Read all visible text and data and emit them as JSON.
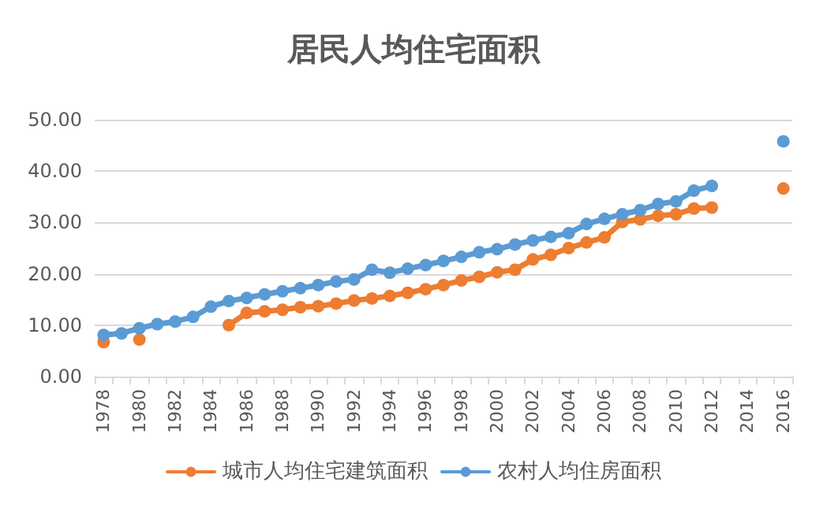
{
  "chart_data": {
    "type": "line",
    "title": "居民人均住宅面积",
    "categories": [
      "1978",
      null,
      "1980",
      null,
      "1982",
      null,
      "1984",
      null,
      "1986",
      null,
      "1988",
      null,
      "1990",
      null,
      "1992",
      null,
      "1994",
      null,
      "1996",
      null,
      "1998",
      null,
      "2000",
      null,
      "2002",
      null,
      "2004",
      null,
      "2006",
      null,
      "2008",
      null,
      "2010",
      null,
      "2012",
      null,
      "2014",
      null,
      "2016"
    ],
    "series": [
      {
        "name": "城市人均住宅建筑面积",
        "color": "#ed7d31",
        "values": [
          6.7,
          null,
          7.2,
          null,
          null,
          null,
          null,
          10.0,
          12.4,
          12.7,
          13.0,
          13.5,
          13.7,
          14.2,
          14.8,
          15.2,
          15.7,
          16.3,
          17.0,
          17.8,
          18.7,
          19.4,
          20.3,
          20.8,
          22.8,
          23.7,
          25.0,
          26.1,
          27.1,
          30.1,
          30.6,
          31.3,
          31.6,
          32.7,
          32.9,
          null,
          null,
          null,
          36.6
        ]
      },
      {
        "name": "农村人均住房面积",
        "color": "#5b9bd5",
        "values": [
          8.1,
          8.4,
          9.4,
          10.2,
          10.7,
          11.6,
          13.6,
          14.7,
          15.3,
          16.0,
          16.6,
          17.2,
          17.8,
          18.5,
          18.9,
          20.8,
          20.2,
          21.0,
          21.7,
          22.5,
          23.3,
          24.2,
          24.8,
          25.7,
          26.5,
          27.2,
          27.9,
          29.7,
          30.7,
          31.6,
          32.4,
          33.6,
          34.1,
          36.2,
          37.1,
          null,
          null,
          null,
          45.8
        ]
      }
    ],
    "ylim": [
      0,
      50
    ],
    "yticks": [
      {
        "value": 0,
        "label": "0.00"
      },
      {
        "value": 10,
        "label": "10.00"
      },
      {
        "value": 20,
        "label": "20.00"
      },
      {
        "value": 30,
        "label": "30.00"
      },
      {
        "value": 40,
        "label": "40.00"
      },
      {
        "value": 50,
        "label": "50.00"
      }
    ],
    "grid": "y",
    "legend": "bottom",
    "marker": "circle",
    "line_style": "solid"
  }
}
